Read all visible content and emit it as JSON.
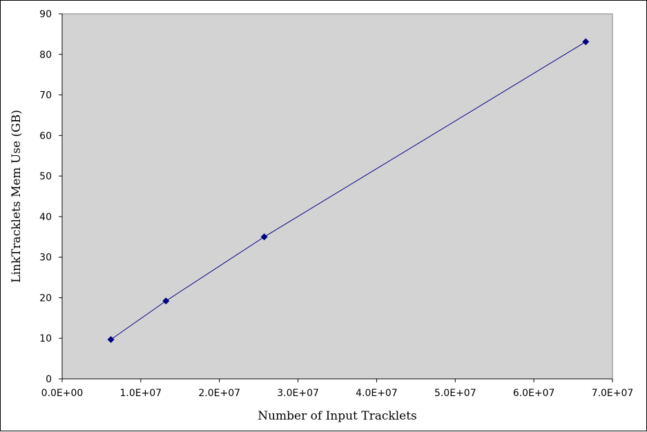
{
  "chart_data": {
    "type": "line",
    "title": "",
    "xlabel": "Number of Input Tracklets",
    "ylabel": "LinkTracklets Mem Use (GB)",
    "xlim": [
      0,
      70000000
    ],
    "ylim": [
      0,
      90
    ],
    "x_ticks": [
      0,
      10000000,
      20000000,
      30000000,
      40000000,
      50000000,
      60000000,
      70000000
    ],
    "x_tick_labels": [
      "0.0E+00",
      "1.0E+07",
      "2.0E+07",
      "3.0E+07",
      "4.0E+07",
      "5.0E+07",
      "6.0E+07",
      "7.0E+07"
    ],
    "y_ticks": [
      0,
      10,
      20,
      30,
      40,
      50,
      60,
      70,
      80,
      90
    ],
    "y_tick_labels": [
      "0",
      "10",
      "20",
      "30",
      "40",
      "50",
      "60",
      "70",
      "80",
      "90"
    ],
    "grid": false,
    "legend": "none",
    "series": [
      {
        "x": [
          6200000,
          13200000,
          25700000,
          66600000
        ],
        "y": [
          9.7,
          19.2,
          35.0,
          83.1
        ],
        "marker": "diamond"
      }
    ],
    "colors": {
      "plot_background": "#d3d3d3",
      "series": "#000080",
      "axis": "#000000"
    }
  }
}
